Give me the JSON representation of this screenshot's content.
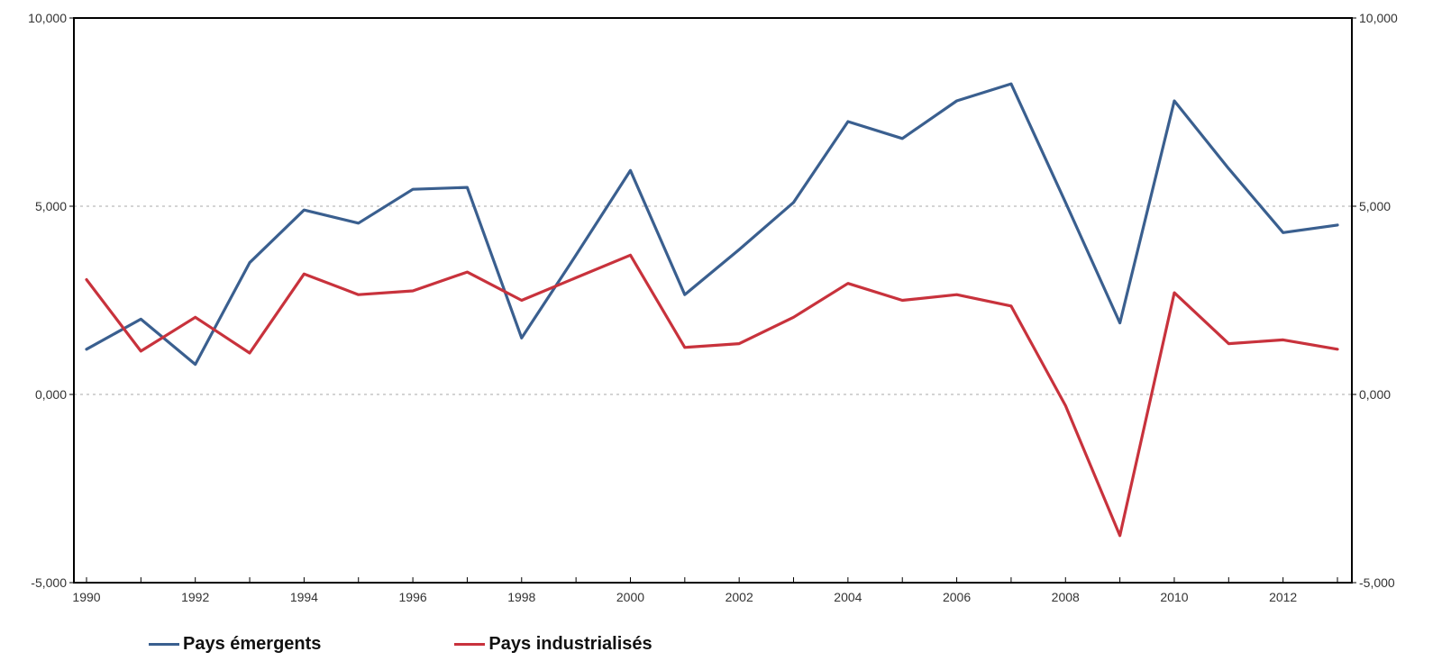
{
  "chart_data": {
    "type": "line",
    "title": "",
    "xlabel": "",
    "ylabel": "",
    "x": [
      1990,
      1991,
      1992,
      1993,
      1994,
      1995,
      1996,
      1997,
      1998,
      1999,
      2000,
      2001,
      2002,
      2003,
      2004,
      2005,
      2006,
      2007,
      2008,
      2009,
      2010,
      2011,
      2012,
      2013
    ],
    "x_tick_labels": [
      "1990",
      "1992",
      "1994",
      "1996",
      "1998",
      "2000",
      "2002",
      "2004",
      "2006",
      "2008",
      "2010",
      "2012"
    ],
    "ylim": [
      -5,
      10
    ],
    "y_tick_values": [
      -5,
      0,
      5,
      10
    ],
    "y_tick_labels": [
      "-5,000",
      "0,000",
      "5,000",
      "10,000"
    ],
    "grid": "dotted horizontal at 0 and 5",
    "dual_y_axis": true,
    "legend_position": "bottom-left",
    "series": [
      {
        "name": "Pays émergents",
        "color": "#3a5f8f",
        "values": [
          1.2,
          2.0,
          0.8,
          3.5,
          4.9,
          4.55,
          5.45,
          5.5,
          1.5,
          3.7,
          5.95,
          2.65,
          3.85,
          5.1,
          7.25,
          6.8,
          7.8,
          8.25,
          5.1,
          1.9,
          7.8,
          6.0,
          4.3,
          4.5
        ]
      },
      {
        "name": "Pays industrialisés",
        "color": "#c8323c",
        "values": [
          3.05,
          1.15,
          2.05,
          1.1,
          3.2,
          2.65,
          2.75,
          3.25,
          2.5,
          3.1,
          3.7,
          1.25,
          1.35,
          2.05,
          2.95,
          2.5,
          2.65,
          2.35,
          -0.3,
          -3.75,
          2.7,
          1.35,
          1.45,
          1.2
        ]
      }
    ]
  }
}
